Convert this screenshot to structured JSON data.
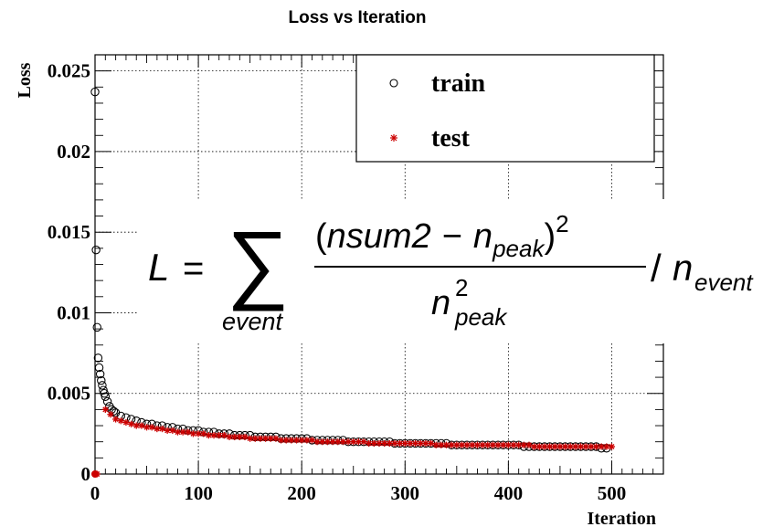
{
  "chart_data": {
    "type": "scatter",
    "title": "Loss vs Iteration",
    "xlabel": "Iteration",
    "ylabel": "Loss",
    "xlim": [
      0,
      550
    ],
    "ylim": [
      0,
      0.026
    ],
    "grid": true,
    "legend_position": "top-right",
    "x_ticks": [
      0,
      100,
      200,
      300,
      400,
      500
    ],
    "x_tick_labels": [
      "0",
      "100",
      "200",
      "300",
      "400",
      "500"
    ],
    "y_ticks": [
      0,
      0.005,
      0.01,
      0.015,
      0.02,
      0.025
    ],
    "y_tick_labels": [
      "0",
      "0.005",
      "0.01",
      "0.015",
      "0.02",
      "0.025"
    ],
    "series": [
      {
        "name": "train",
        "marker": "open-circle",
        "color": "#000000",
        "x": [
          0,
          1,
          2,
          3,
          4,
          5,
          6,
          7,
          8,
          9,
          10,
          12,
          14,
          16,
          18,
          20,
          25,
          30,
          35,
          40,
          45,
          50,
          55,
          60,
          65,
          70,
          75,
          80,
          85,
          90,
          95,
          100,
          105,
          110,
          115,
          120,
          125,
          130,
          135,
          140,
          145,
          150,
          155,
          160,
          165,
          170,
          175,
          180,
          185,
          190,
          195,
          200,
          205,
          210,
          215,
          220,
          225,
          230,
          235,
          240,
          245,
          250,
          255,
          260,
          265,
          270,
          275,
          280,
          285,
          290,
          295,
          300,
          305,
          310,
          315,
          320,
          325,
          330,
          335,
          340,
          345,
          350,
          355,
          360,
          365,
          370,
          375,
          380,
          385,
          390,
          395,
          400,
          405,
          410,
          415,
          420,
          425,
          430,
          435,
          440,
          445,
          450,
          455,
          460,
          465,
          470,
          475,
          480,
          485,
          490,
          495
        ],
        "y": [
          0.0237,
          0.0139,
          0.0091,
          0.0072,
          0.0066,
          0.0062,
          0.0058,
          0.0055,
          0.0052,
          0.005,
          0.0048,
          0.0045,
          0.0042,
          0.004,
          0.0039,
          0.0038,
          0.0036,
          0.0035,
          0.0034,
          0.0033,
          0.0032,
          0.0031,
          0.0031,
          0.003,
          0.003,
          0.0029,
          0.0029,
          0.0028,
          0.0028,
          0.0027,
          0.0027,
          0.0027,
          0.0026,
          0.0026,
          0.0026,
          0.0025,
          0.0025,
          0.0025,
          0.0024,
          0.0024,
          0.0024,
          0.0024,
          0.0023,
          0.0023,
          0.0023,
          0.0023,
          0.0023,
          0.0022,
          0.0022,
          0.0022,
          0.0022,
          0.0022,
          0.0022,
          0.0021,
          0.0021,
          0.0021,
          0.0021,
          0.0021,
          0.0021,
          0.0021,
          0.002,
          0.002,
          0.002,
          0.002,
          0.002,
          0.002,
          0.002,
          0.002,
          0.002,
          0.0019,
          0.0019,
          0.0019,
          0.0019,
          0.0019,
          0.0019,
          0.0019,
          0.0019,
          0.0019,
          0.0019,
          0.0019,
          0.0018,
          0.0018,
          0.0018,
          0.0018,
          0.0018,
          0.0018,
          0.0018,
          0.0018,
          0.0018,
          0.0018,
          0.0018,
          0.0018,
          0.0018,
          0.0018,
          0.0017,
          0.0017,
          0.0017,
          0.0017,
          0.0017,
          0.0017,
          0.0017,
          0.0017,
          0.0017,
          0.0017,
          0.0017,
          0.0017,
          0.0017,
          0.0017,
          0.0017,
          0.0016,
          0.0016
        ]
      },
      {
        "name": "test",
        "marker": "asterisk",
        "color": "#cc0000",
        "x": [
          0,
          1,
          2,
          10,
          15,
          20,
          25,
          30,
          35,
          40,
          45,
          50,
          55,
          60,
          65,
          70,
          75,
          80,
          85,
          90,
          95,
          100,
          105,
          110,
          115,
          120,
          125,
          130,
          135,
          140,
          145,
          150,
          155,
          160,
          165,
          170,
          175,
          180,
          185,
          190,
          195,
          200,
          205,
          210,
          215,
          220,
          225,
          230,
          235,
          240,
          245,
          250,
          255,
          260,
          265,
          270,
          275,
          280,
          285,
          290,
          295,
          300,
          305,
          310,
          315,
          320,
          325,
          330,
          335,
          340,
          345,
          350,
          355,
          360,
          365,
          370,
          375,
          380,
          385,
          390,
          395,
          400,
          405,
          410,
          415,
          420,
          425,
          430,
          435,
          440,
          445,
          450,
          455,
          460,
          465,
          470,
          475,
          480,
          485,
          490,
          495,
          500
        ],
        "y": [
          0.0,
          0.0,
          0.0,
          0.004,
          0.0037,
          0.0034,
          0.0033,
          0.0032,
          0.0031,
          0.003,
          0.003,
          0.0029,
          0.0029,
          0.0028,
          0.0028,
          0.0027,
          0.0027,
          0.0026,
          0.0026,
          0.0026,
          0.0025,
          0.0025,
          0.0025,
          0.0024,
          0.0024,
          0.0024,
          0.0024,
          0.0023,
          0.0023,
          0.0023,
          0.0023,
          0.0022,
          0.0022,
          0.0022,
          0.0022,
          0.0022,
          0.0022,
          0.0021,
          0.0021,
          0.0021,
          0.0021,
          0.0021,
          0.0021,
          0.0021,
          0.002,
          0.002,
          0.002,
          0.002,
          0.002,
          0.002,
          0.002,
          0.002,
          0.002,
          0.002,
          0.0019,
          0.0019,
          0.0019,
          0.0019,
          0.0019,
          0.0019,
          0.0019,
          0.0019,
          0.0019,
          0.0019,
          0.0019,
          0.0019,
          0.0019,
          0.0018,
          0.0018,
          0.0018,
          0.0018,
          0.0018,
          0.0018,
          0.0018,
          0.0018,
          0.0018,
          0.0018,
          0.0018,
          0.0018,
          0.0018,
          0.0018,
          0.0018,
          0.0018,
          0.0018,
          0.0018,
          0.0018,
          0.0017,
          0.0017,
          0.0017,
          0.0017,
          0.0017,
          0.0017,
          0.0017,
          0.0017,
          0.0017,
          0.0017,
          0.0017,
          0.0017,
          0.0017,
          0.0017,
          0.0017,
          0.0017
        ]
      }
    ],
    "annotation": {
      "lhs": "L",
      "equals": "=",
      "sum_symbol": "∑",
      "sum_subscript": "event",
      "numerator_open": "(",
      "numerator_var": "nsum2",
      "numerator_minus": "−",
      "numerator_n": "n",
      "numerator_sub": "peak",
      "numerator_close": ")",
      "numerator_exp": "2",
      "denominator_n": "n",
      "denominator_exp": "2",
      "denominator_sub": "peak",
      "slash": "/",
      "divisor_n": "n",
      "divisor_sub": "event"
    }
  }
}
